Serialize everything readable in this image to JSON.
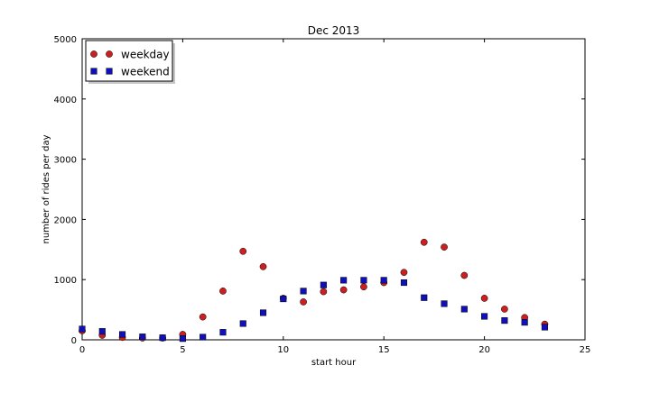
{
  "chart_data": {
    "type": "scatter",
    "title": "Dec 2013",
    "xlabel": "start hour",
    "ylabel": "number of rides per day",
    "xlim": [
      0,
      25
    ],
    "ylim": [
      0,
      5000
    ],
    "xticks": [
      0,
      5,
      10,
      15,
      20,
      25
    ],
    "yticks": [
      0,
      1000,
      2000,
      3000,
      4000,
      5000
    ],
    "grid": false,
    "legend_position": "top-left",
    "series": [
      {
        "name": "weekday",
        "marker": "circle",
        "color": "#cc1f1f",
        "x": [
          0,
          1,
          2,
          3,
          4,
          5,
          6,
          7,
          8,
          9,
          10,
          11,
          12,
          13,
          14,
          15,
          16,
          17,
          18,
          19,
          20,
          21,
          22,
          23
        ],
        "y": [
          150,
          75,
          40,
          30,
          30,
          90,
          380,
          810,
          1470,
          1215,
          690,
          630,
          800,
          830,
          880,
          950,
          1120,
          1620,
          1540,
          1070,
          690,
          510,
          370,
          260
        ]
      },
      {
        "name": "weekend",
        "marker": "square",
        "color": "#1010b8",
        "x": [
          0,
          1,
          2,
          3,
          4,
          5,
          6,
          7,
          8,
          9,
          10,
          11,
          12,
          13,
          14,
          15,
          16,
          17,
          18,
          19,
          20,
          21,
          22,
          23
        ],
        "y": [
          180,
          140,
          90,
          50,
          35,
          20,
          45,
          125,
          270,
          450,
          680,
          810,
          910,
          990,
          990,
          990,
          950,
          700,
          600,
          510,
          390,
          320,
          290,
          210
        ]
      }
    ]
  }
}
